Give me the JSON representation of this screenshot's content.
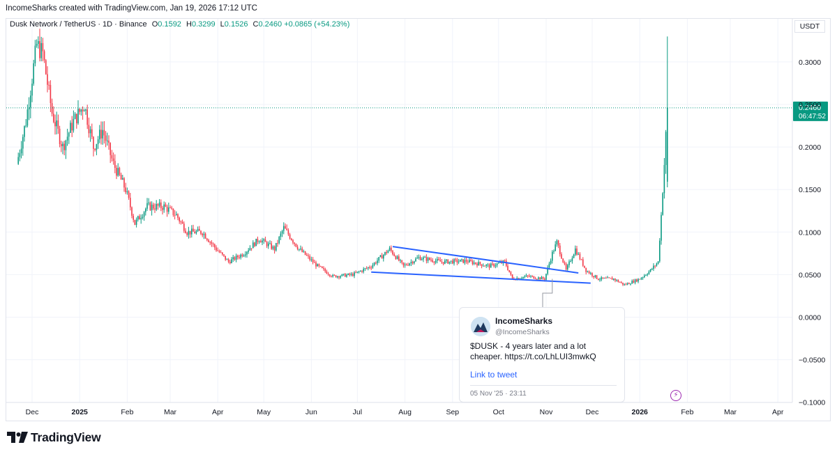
{
  "header": {
    "credit": "IncomeSharks created with TradingView.com, Jan 19, 2026 17:12 UTC"
  },
  "legend": {
    "symbol": "Dusk Network / TetherUS · 1D · Binance",
    "open_label": "O",
    "open": "0.1592",
    "high_label": "H",
    "high": "0.3299",
    "low_label": "L",
    "low": "0.1526",
    "close_label": "C",
    "close": "0.2460",
    "change": "+0.0865 (+54.23%)"
  },
  "price_axis": {
    "unit": "USDT"
  },
  "last_price": {
    "price": "0.2460",
    "countdown": "06:47:52",
    "color": "#089981"
  },
  "tweet": {
    "name": "IncomeSharks",
    "handle": "@IncomeSharks",
    "text": "$DUSK - 4 years later and a lot cheaper. https://t.co/LhLUI3mwkQ",
    "link_label": "Link to tweet",
    "date": "05 Nov '25 · 23:11"
  },
  "branding": {
    "name": "TradingView"
  },
  "colors": {
    "up": "#089981",
    "down": "#f23645",
    "trendline": "#2962ff"
  },
  "chart_data": {
    "type": "candlestick",
    "x_labels": [
      "Dec",
      "2025",
      "Feb",
      "Mar",
      "Apr",
      "May",
      "Jun",
      "Jul",
      "Aug",
      "Sep",
      "Oct",
      "Nov",
      "Dec",
      "2026",
      "Feb",
      "Mar",
      "Apr"
    ],
    "y_ticks": [
      "0.3000",
      "0.2500",
      "0.2000",
      "0.1500",
      "0.1000",
      "0.0500",
      "0.0000",
      "−0.0500",
      "−0.1000"
    ],
    "ylim": [
      -0.1,
      0.33
    ],
    "y_unit": "USDT",
    "approx_price_path": [
      [
        "2024-11-21",
        0.18
      ],
      [
        "2024-11-27",
        0.23
      ],
      [
        "2024-12-04",
        0.32
      ],
      [
        "2024-12-08",
        0.31
      ],
      [
        "2024-12-14",
        0.24
      ],
      [
        "2024-12-21",
        0.2
      ],
      [
        "2024-12-28",
        0.23
      ],
      [
        "2025-01-04",
        0.25
      ],
      [
        "2025-01-10",
        0.2
      ],
      [
        "2025-01-16",
        0.22
      ],
      [
        "2025-01-23",
        0.18
      ],
      [
        "2025-01-31",
        0.15
      ],
      [
        "2025-02-06",
        0.11
      ],
      [
        "2025-02-14",
        0.13
      ],
      [
        "2025-02-25",
        0.13
      ],
      [
        "2025-03-05",
        0.12
      ],
      [
        "2025-03-12",
        0.1
      ],
      [
        "2025-03-22",
        0.1
      ],
      [
        "2025-03-31",
        0.08
      ],
      [
        "2025-04-08",
        0.065
      ],
      [
        "2025-04-18",
        0.075
      ],
      [
        "2025-04-28",
        0.092
      ],
      [
        "2025-05-08",
        0.08
      ],
      [
        "2025-05-14",
        0.105
      ],
      [
        "2025-05-24",
        0.08
      ],
      [
        "2025-06-05",
        0.06
      ],
      [
        "2025-06-15",
        0.048
      ],
      [
        "2025-06-28",
        0.05
      ],
      [
        "2025-07-10",
        0.06
      ],
      [
        "2025-07-22",
        0.08
      ],
      [
        "2025-07-31",
        0.06
      ],
      [
        "2025-08-10",
        0.07
      ],
      [
        "2025-08-25",
        0.065
      ],
      [
        "2025-09-10",
        0.066
      ],
      [
        "2025-09-25",
        0.06
      ],
      [
        "2025-10-05",
        0.065
      ],
      [
        "2025-10-10",
        0.045
      ],
      [
        "2025-10-20",
        0.048
      ],
      [
        "2025-10-31",
        0.045
      ],
      [
        "2025-11-05",
        0.075
      ],
      [
        "2025-11-08",
        0.088
      ],
      [
        "2025-11-14",
        0.055
      ],
      [
        "2025-11-20",
        0.08
      ],
      [
        "2025-11-27",
        0.055
      ],
      [
        "2025-12-05",
        0.045
      ],
      [
        "2025-12-15",
        0.045
      ],
      [
        "2025-12-22",
        0.038
      ],
      [
        "2026-01-01",
        0.045
      ],
      [
        "2026-01-08",
        0.055
      ],
      [
        "2026-01-13",
        0.065
      ],
      [
        "2026-01-15",
        0.12
      ],
      [
        "2026-01-17",
        0.18
      ],
      [
        "2026-01-19",
        0.246
      ]
    ],
    "patterns": [
      {
        "type": "falling wedge",
        "upper": [
          [
            "2025-07-24",
            0.083
          ],
          [
            "2025-11-22",
            0.052
          ]
        ],
        "lower": [
          [
            "2025-07-10",
            0.053
          ],
          [
            "2025-11-30",
            0.04
          ]
        ]
      }
    ],
    "annotation": {
      "date": "2025-11-05",
      "price": 0.045
    },
    "last_price_line": 0.246
  }
}
